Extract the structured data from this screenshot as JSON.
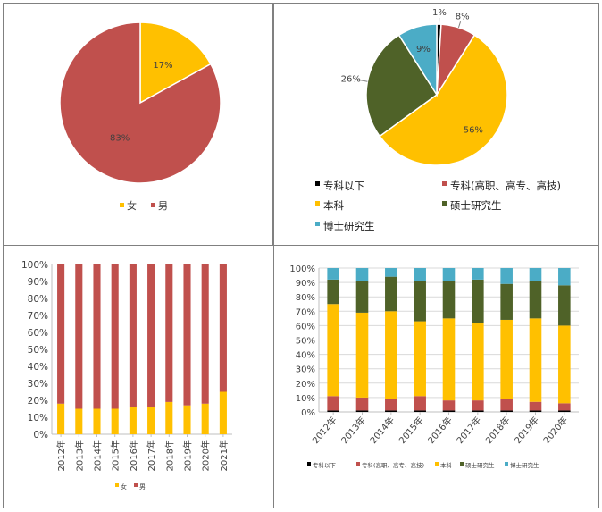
{
  "chart_data": [
    {
      "type": "pie",
      "labels": [
        "女",
        "男"
      ],
      "values": [
        17,
        83
      ],
      "data_labels": [
        "17%",
        "83%"
      ],
      "colors": [
        "#FFC000",
        "#C0504D"
      ],
      "legend": "bottom"
    },
    {
      "type": "pie",
      "labels": [
        "专科以下",
        "专科(高职、高专、高技)",
        "本科",
        "硕士研究生",
        "博士研究生"
      ],
      "values": [
        1,
        8,
        56,
        26,
        9
      ],
      "data_labels": [
        "1%",
        "8%",
        "56%",
        "26%",
        "9%"
      ],
      "colors": [
        "#000000",
        "#C0504D",
        "#FFC000",
        "#4F6228",
        "#4BACC6"
      ],
      "legend": "bottom"
    },
    {
      "type": "bar",
      "stacked": "percent",
      "categories": [
        "2012年",
        "2013年",
        "2014年",
        "2015年",
        "2016年",
        "2017年",
        "2018年",
        "2019年",
        "2020年",
        "2021年"
      ],
      "series": [
        {
          "name": "女",
          "color": "#FFC000",
          "values": [
            18,
            15,
            15,
            15,
            16,
            16,
            19,
            17,
            18,
            25
          ]
        },
        {
          "name": "男",
          "color": "#C0504D",
          "values": [
            82,
            85,
            85,
            85,
            84,
            84,
            81,
            83,
            82,
            75
          ]
        }
      ],
      "yticks": [
        "0%",
        "10%",
        "20%",
        "30%",
        "40%",
        "50%",
        "60%",
        "70%",
        "80%",
        "90%",
        "100%"
      ],
      "ylim": [
        0,
        100
      ],
      "legend": "bottom"
    },
    {
      "type": "bar",
      "stacked": "percent",
      "categories": [
        "2012年",
        "2013年",
        "2014年",
        "2015年",
        "2016年",
        "2017年",
        "2018年",
        "2019年",
        "2020年"
      ],
      "series": [
        {
          "name": "专科以下",
          "color": "#000000",
          "values": [
            1,
            1,
            1,
            1,
            1,
            1,
            1,
            1,
            1
          ]
        },
        {
          "name": "专科(高职、高专、高技)",
          "color": "#C0504D",
          "values": [
            10,
            9,
            8,
            10,
            7,
            7,
            8,
            6,
            5
          ]
        },
        {
          "name": "本科",
          "color": "#FFC000",
          "values": [
            64,
            59,
            61,
            52,
            57,
            54,
            55,
            58,
            54
          ]
        },
        {
          "name": "硕士研究生",
          "color": "#4F6228",
          "values": [
            17,
            22,
            24,
            28,
            26,
            30,
            25,
            26,
            28
          ]
        },
        {
          "name": "博士研究生",
          "color": "#4BACC6",
          "values": [
            8,
            9,
            6,
            9,
            9,
            8,
            11,
            9,
            12
          ]
        }
      ],
      "yticks": [
        "0%",
        "10%",
        "20%",
        "30%",
        "40%",
        "50%",
        "60%",
        "70%",
        "80%",
        "90%",
        "100%"
      ],
      "ylim": [
        0,
        100
      ],
      "legend": "bottom"
    }
  ]
}
